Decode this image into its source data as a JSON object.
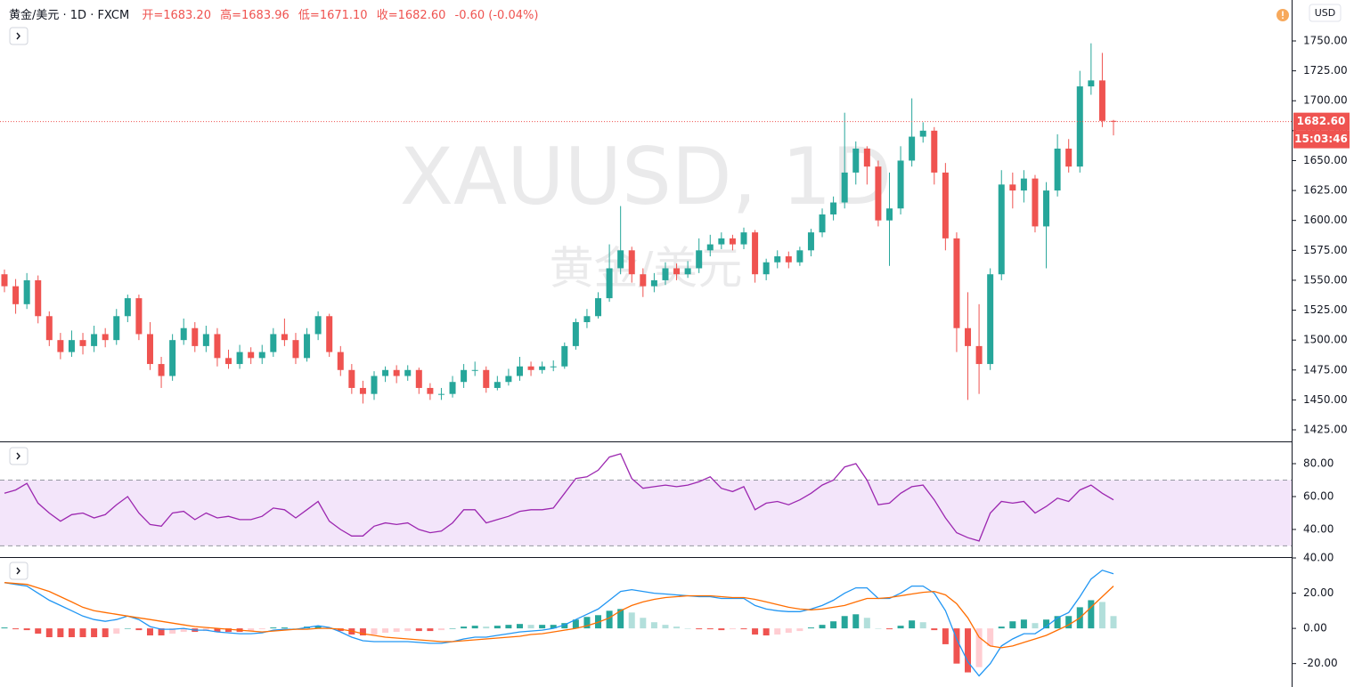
{
  "header": {
    "title": "黄金/美元 · 1D · FXCM",
    "open": "开=1683.20",
    "high": "高=1683.96",
    "low": "低=1671.10",
    "close": "收=1682.60",
    "change": "-0.60 (-0.04%)"
  },
  "chart_data": [
    {
      "type": "candlestick",
      "watermark": "XAUUSD, 1D",
      "watermark_sub": "黄金/美元",
      "currency": "USD",
      "countdown": "15:03:46",
      "up_color": "#26a69a",
      "down_color": "#ef5350",
      "open": [
        1555,
        1545,
        1530,
        1550,
        1520,
        1500,
        1490,
        1500,
        1495,
        1505,
        1500,
        1520,
        1535,
        1505,
        1480,
        1470,
        1500,
        1510,
        1495,
        1505,
        1485,
        1480,
        1490,
        1485,
        1490,
        1505,
        1500,
        1485,
        1505,
        1520,
        1490,
        1475,
        1460,
        1455,
        1470,
        1475,
        1470,
        1475,
        1460,
        1455,
        1455,
        1465,
        1475,
        1475,
        1460,
        1465,
        1470,
        1478,
        1475,
        1478,
        1478,
        1495,
        1515,
        1520,
        1535,
        1560,
        1575,
        1555,
        1545,
        1550,
        1560,
        1555,
        1560,
        1575,
        1580,
        1585,
        1580,
        1590,
        1555,
        1565,
        1570,
        1565,
        1575,
        1590,
        1605,
        1615,
        1640,
        1660,
        1645,
        1600,
        1610,
        1650,
        1670,
        1675,
        1640,
        1585,
        1510,
        1495,
        1480,
        1555,
        1630,
        1625,
        1635,
        1595,
        1625,
        1660,
        1645,
        1712,
        1717,
        1683.2
      ],
      "high": [
        1559,
        1551,
        1556,
        1554,
        1524,
        1506,
        1508,
        1506,
        1512,
        1510,
        1526,
        1538,
        1538,
        1515,
        1486,
        1505,
        1518,
        1515,
        1512,
        1510,
        1492,
        1496,
        1494,
        1496,
        1510,
        1518,
        1506,
        1510,
        1524,
        1522,
        1495,
        1480,
        1466,
        1474,
        1478,
        1479,
        1479,
        1477,
        1464,
        1460,
        1470,
        1480,
        1482,
        1478,
        1470,
        1476,
        1486,
        1482,
        1482,
        1483,
        1498,
        1518,
        1526,
        1540,
        1580,
        1612,
        1578,
        1560,
        1556,
        1565,
        1564,
        1566,
        1585,
        1588,
        1590,
        1588,
        1594,
        1592,
        1568,
        1575,
        1574,
        1578,
        1593,
        1610,
        1620,
        1690,
        1666,
        1662,
        1650,
        1640,
        1662,
        1702,
        1682,
        1678,
        1648,
        1590,
        1540,
        1530,
        1560,
        1642,
        1640,
        1642,
        1638,
        1632,
        1672,
        1668,
        1725,
        1748,
        1740,
        1683.96
      ],
      "low": [
        1540,
        1522,
        1526,
        1514,
        1495,
        1484,
        1486,
        1488,
        1490,
        1494,
        1496,
        1515,
        1500,
        1475,
        1460,
        1466,
        1496,
        1490,
        1490,
        1478,
        1476,
        1476,
        1480,
        1480,
        1486,
        1495,
        1480,
        1482,
        1500,
        1486,
        1470,
        1455,
        1447,
        1450,
        1465,
        1464,
        1466,
        1455,
        1450,
        1450,
        1452,
        1460,
        1470,
        1456,
        1458,
        1462,
        1466,
        1470,
        1472,
        1474,
        1476,
        1492,
        1510,
        1518,
        1532,
        1555,
        1548,
        1536,
        1540,
        1546,
        1550,
        1552,
        1556,
        1570,
        1576,
        1575,
        1576,
        1548,
        1550,
        1560,
        1560,
        1562,
        1570,
        1586,
        1600,
        1610,
        1630,
        1630,
        1595,
        1562,
        1605,
        1645,
        1665,
        1630,
        1575,
        1490,
        1450,
        1455,
        1475,
        1550,
        1610,
        1615,
        1590,
        1560,
        1620,
        1640,
        1640,
        1705,
        1678,
        1671.1
      ],
      "close": [
        1545,
        1530,
        1550,
        1520,
        1500,
        1490,
        1500,
        1495,
        1505,
        1500,
        1520,
        1535,
        1505,
        1480,
        1470,
        1500,
        1510,
        1495,
        1505,
        1485,
        1480,
        1490,
        1485,
        1490,
        1505,
        1500,
        1485,
        1505,
        1520,
        1490,
        1475,
        1460,
        1455,
        1470,
        1475,
        1470,
        1475,
        1460,
        1455,
        1455,
        1465,
        1475,
        1475,
        1460,
        1465,
        1470,
        1478,
        1475,
        1478,
        1478,
        1495,
        1515,
        1520,
        1535,
        1560,
        1575,
        1555,
        1545,
        1550,
        1560,
        1555,
        1560,
        1575,
        1580,
        1585,
        1580,
        1590,
        1555,
        1565,
        1570,
        1565,
        1575,
        1590,
        1605,
        1615,
        1640,
        1660,
        1645,
        1600,
        1610,
        1650,
        1670,
        1675,
        1640,
        1585,
        1510,
        1495,
        1480,
        1555,
        1630,
        1625,
        1635,
        1595,
        1625,
        1660,
        1645,
        1712,
        1717,
        1683.2,
        1682.6
      ],
      "last_price": {
        "value": 1682.6,
        "label": "1682.60"
      },
      "ylim": [
        1414.6,
        1784.2
      ],
      "yticks": [
        {
          "value": 1425,
          "label": "1425.00"
        },
        {
          "value": 1450,
          "label": "1450.00"
        },
        {
          "value": 1475,
          "label": "1475.00"
        },
        {
          "value": 1500,
          "label": "1500.00"
        },
        {
          "value": 1525,
          "label": "1525.00"
        },
        {
          "value": 1550,
          "label": "1550.00"
        },
        {
          "value": 1575,
          "label": "1575.00"
        },
        {
          "value": 1600,
          "label": "1600.00"
        },
        {
          "value": 1625,
          "label": "1625.00"
        },
        {
          "value": 1650,
          "label": "1650.00"
        },
        {
          "value": 1675,
          "label": "1675.00"
        },
        {
          "value": 1700,
          "label": "1700.00"
        },
        {
          "value": 1725,
          "label": "1725.00"
        },
        {
          "value": 1750,
          "label": "1750.00"
        }
      ]
    },
    {
      "type": "line",
      "color": "#9c27b0",
      "band": [
        30,
        70
      ],
      "band_color": "#f3e5fa",
      "values": [
        62,
        64,
        68,
        56,
        50,
        45,
        49,
        50,
        47,
        49,
        55,
        60,
        50,
        43,
        42,
        50,
        51,
        46,
        50,
        47,
        48,
        46,
        46,
        48,
        53,
        52,
        47,
        52,
        57,
        45,
        40,
        36,
        36,
        42,
        44,
        43,
        44,
        40,
        38,
        39,
        44,
        52,
        52,
        44,
        46,
        48,
        51,
        52,
        52,
        53,
        62,
        71,
        72,
        76,
        84,
        86,
        71,
        65,
        66,
        67,
        66,
        67,
        69,
        72,
        65,
        63,
        66,
        52,
        56,
        57,
        55,
        58,
        62,
        67,
        70,
        78,
        80,
        70,
        55,
        56,
        62,
        66,
        67,
        58,
        47,
        38,
        35,
        33,
        50,
        57,
        56,
        57,
        50,
        54,
        59,
        57,
        64,
        67,
        62,
        58
      ],
      "ylim": [
        23.2,
        93
      ],
      "yticks": [
        {
          "value": 40,
          "label": "40.00"
        },
        {
          "value": 60,
          "label": "60.00"
        },
        {
          "value": 80,
          "label": "80.00"
        }
      ]
    },
    {
      "type": "combo",
      "series": [
        {
          "kind": "bar",
          "colors": [
            "#26a69a",
            "#b2dfdb",
            "#ffcdd2",
            "#ef5350"
          ],
          "values": [
            0.5,
            -0.5,
            -1,
            -3,
            -5,
            -5,
            -5,
            -5,
            -5,
            -5,
            -3,
            0,
            -1,
            -4,
            -4,
            -3,
            -2,
            -2,
            -1.5,
            -2,
            -2,
            -2,
            -1.5,
            -0.5,
            0.5,
            0.5,
            0,
            1,
            1.5,
            0.5,
            -1.5,
            -3.5,
            -4,
            -3.5,
            -2.5,
            -2,
            -1.5,
            -1.5,
            -1.5,
            -1,
            0,
            1,
            1.5,
            1,
            1.5,
            2,
            2.5,
            2,
            2,
            2,
            3,
            5,
            6.5,
            7.5,
            10,
            11,
            9,
            6,
            3.5,
            2,
            1,
            0,
            -0.5,
            -0.5,
            -1,
            -0.5,
            -0.5,
            -3.5,
            -4,
            -3.5,
            -2.5,
            -1.5,
            0.5,
            2,
            4,
            7,
            8,
            6,
            0,
            -0.5,
            1.5,
            4.5,
            3.5,
            -1,
            -9,
            -20,
            -25,
            -22,
            -10,
            1,
            4,
            5,
            3,
            5,
            7,
            7,
            12,
            16,
            15,
            7
          ]
        },
        {
          "kind": "line",
          "color": "#2196f3",
          "values": [
            26,
            25,
            24,
            20,
            16,
            13,
            10,
            7,
            5,
            4,
            5,
            7,
            5,
            1,
            -0.5,
            -0.5,
            0,
            -1,
            -1,
            -2,
            -2.5,
            -3,
            -3,
            -2.5,
            -1,
            -0.5,
            -0.5,
            0.5,
            1.5,
            0.5,
            -2,
            -5,
            -7,
            -7.5,
            -7.5,
            -7.5,
            -7.5,
            -8,
            -8.5,
            -8.5,
            -7.5,
            -6,
            -5,
            -5,
            -4,
            -3,
            -2,
            -1.5,
            -1,
            0,
            2,
            5,
            8,
            11,
            16,
            21,
            22,
            21,
            20,
            19.5,
            19,
            18.5,
            18,
            18,
            17,
            17,
            17,
            13,
            11,
            10,
            9.5,
            9.5,
            11,
            13,
            16,
            20,
            23,
            23,
            17,
            17,
            20,
            24,
            24,
            20,
            10,
            -6,
            -19,
            -27,
            -20,
            -10,
            -6,
            -3,
            -3,
            1,
            6,
            9,
            18,
            28,
            33,
            31
          ]
        },
        {
          "kind": "line",
          "color": "#ff6d00",
          "values": [
            26,
            25.5,
            25,
            23,
            21,
            18,
            15,
            12,
            10,
            9,
            8,
            7,
            6,
            5,
            4,
            3,
            2,
            1,
            0.5,
            0,
            -0.5,
            -1,
            -1.5,
            -2,
            -1.5,
            -1,
            -0.5,
            -0.5,
            0,
            0,
            -0.5,
            -1.5,
            -3,
            -4,
            -5,
            -5.5,
            -6,
            -6.5,
            -7,
            -7.5,
            -7.5,
            -7,
            -6.5,
            -6,
            -5.5,
            -5,
            -4.5,
            -3.5,
            -3,
            -2,
            -1,
            0,
            1.5,
            3.5,
            6,
            10,
            13,
            15,
            16.5,
            17.5,
            18,
            18.5,
            18.5,
            18.5,
            18,
            17.5,
            17.5,
            16.5,
            15,
            13.5,
            12,
            11,
            10.5,
            11,
            12,
            13,
            15,
            17,
            17,
            17.5,
            18.5,
            19.5,
            20.5,
            21,
            19,
            14,
            6,
            -5,
            -10,
            -11,
            -10,
            -8,
            -6,
            -4,
            -1,
            2,
            6,
            12,
            18,
            24
          ]
        }
      ],
      "ylim": [
        -33.3,
        40.5
      ],
      "yticks": [
        {
          "value": -20,
          "label": "-20.00"
        },
        {
          "value": 0,
          "label": "0.00"
        },
        {
          "value": 20,
          "label": "20.00"
        },
        {
          "value": 40,
          "label": "40.00"
        }
      ]
    }
  ]
}
